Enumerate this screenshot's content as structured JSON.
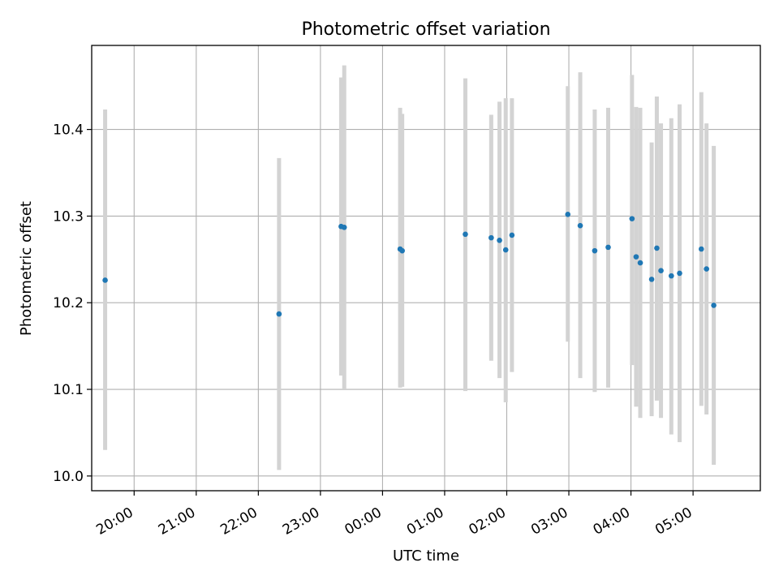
{
  "chart_data": {
    "type": "scatter",
    "title": "Photometric offset variation",
    "xlabel": "UTC time",
    "ylabel": "Photometric offset",
    "x_unit": "UTC time (HH:MM), night spanning midnight",
    "xlim": [
      "19:19",
      "06:05"
    ],
    "ylim": [
      9.983,
      10.497
    ],
    "x_ticks": [
      "20:00",
      "21:00",
      "22:00",
      "23:00",
      "00:00",
      "01:00",
      "02:00",
      "03:00",
      "04:00",
      "05:00"
    ],
    "y_ticks": [
      "10.0",
      "10.1",
      "10.2",
      "10.3",
      "10.4"
    ],
    "grid": true,
    "points": [
      {
        "x": "19:32",
        "y": 10.226,
        "lo": 10.03,
        "hi": 10.423
      },
      {
        "x": "22:20",
        "y": 10.187,
        "lo": 10.007,
        "hi": 10.367
      },
      {
        "x": "23:20",
        "y": 10.288,
        "lo": 10.116,
        "hi": 10.46
      },
      {
        "x": "23:23",
        "y": 10.287,
        "lo": 10.1,
        "hi": 10.474
      },
      {
        "x": "00:17",
        "y": 10.262,
        "lo": 10.102,
        "hi": 10.425
      },
      {
        "x": "00:19",
        "y": 10.26,
        "lo": 10.103,
        "hi": 10.418
      },
      {
        "x": "01:20",
        "y": 10.279,
        "lo": 10.098,
        "hi": 10.459
      },
      {
        "x": "01:45",
        "y": 10.275,
        "lo": 10.133,
        "hi": 10.417
      },
      {
        "x": "01:53",
        "y": 10.272,
        "lo": 10.113,
        "hi": 10.432
      },
      {
        "x": "01:59",
        "y": 10.261,
        "lo": 10.085,
        "hi": 10.436
      },
      {
        "x": "02:05",
        "y": 10.278,
        "lo": 10.12,
        "hi": 10.436
      },
      {
        "x": "02:59",
        "y": 10.302,
        "lo": 10.155,
        "hi": 10.45
      },
      {
        "x": "03:11",
        "y": 10.289,
        "lo": 10.113,
        "hi": 10.466
      },
      {
        "x": "03:25",
        "y": 10.26,
        "lo": 10.097,
        "hi": 10.423
      },
      {
        "x": "03:38",
        "y": 10.264,
        "lo": 10.102,
        "hi": 10.425
      },
      {
        "x": "04:01",
        "y": 10.297,
        "lo": 10.128,
        "hi": 10.463
      },
      {
        "x": "04:05",
        "y": 10.253,
        "lo": 10.08,
        "hi": 10.426
      },
      {
        "x": "04:09",
        "y": 10.246,
        "lo": 10.067,
        "hi": 10.425
      },
      {
        "x": "04:20",
        "y": 10.227,
        "lo": 10.069,
        "hi": 10.385
      },
      {
        "x": "04:25",
        "y": 10.263,
        "lo": 10.087,
        "hi": 10.438
      },
      {
        "x": "04:29",
        "y": 10.237,
        "lo": 10.067,
        "hi": 10.407
      },
      {
        "x": "04:39",
        "y": 10.231,
        "lo": 10.048,
        "hi": 10.413
      },
      {
        "x": "04:47",
        "y": 10.234,
        "lo": 10.039,
        "hi": 10.429
      },
      {
        "x": "05:08",
        "y": 10.262,
        "lo": 10.081,
        "hi": 10.443
      },
      {
        "x": "05:13",
        "y": 10.239,
        "lo": 10.071,
        "hi": 10.407
      },
      {
        "x": "05:20",
        "y": 10.197,
        "lo": 10.013,
        "hi": 10.381
      }
    ],
    "colors": {
      "point": "#1f77b4",
      "errorbar": "#d3d3d3",
      "grid": "#b0b0b0",
      "axis": "#000000"
    }
  }
}
